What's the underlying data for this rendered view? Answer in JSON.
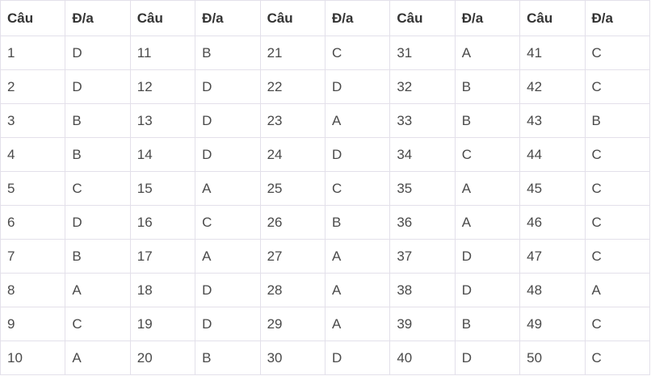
{
  "table": {
    "header": [
      "Câu",
      "Đ/a",
      "Câu",
      "Đ/a",
      "Câu",
      "Đ/a",
      "Câu",
      "Đ/a",
      "Câu",
      "Đ/a"
    ],
    "rows": [
      [
        "1",
        "D",
        "11",
        "B",
        "21",
        "C",
        "31",
        "A",
        "41",
        "C"
      ],
      [
        "2",
        "D",
        "12",
        "D",
        "22",
        "D",
        "32",
        "B",
        "42",
        "C"
      ],
      [
        "3",
        "B",
        "13",
        "D",
        "23",
        "A",
        "33",
        "B",
        "43",
        "B"
      ],
      [
        "4",
        "B",
        "14",
        "D",
        "24",
        "D",
        "34",
        "C",
        "44",
        "C"
      ],
      [
        "5",
        "C",
        "15",
        "A",
        "25",
        "C",
        "35",
        "A",
        "45",
        "C"
      ],
      [
        "6",
        "D",
        "16",
        "C",
        "26",
        "B",
        "36",
        "A",
        "46",
        "C"
      ],
      [
        "7",
        "B",
        "17",
        "A",
        "27",
        "A",
        "37",
        "D",
        "47",
        "C"
      ],
      [
        "8",
        "A",
        "18",
        "D",
        "28",
        "A",
        "38",
        "D",
        "48",
        "A"
      ],
      [
        "9",
        "C",
        "19",
        "D",
        "29",
        "A",
        "39",
        "B",
        "49",
        "C"
      ],
      [
        "10",
        "A",
        "20",
        "B",
        "30",
        "D",
        "40",
        "D",
        "50",
        "C"
      ]
    ]
  }
}
